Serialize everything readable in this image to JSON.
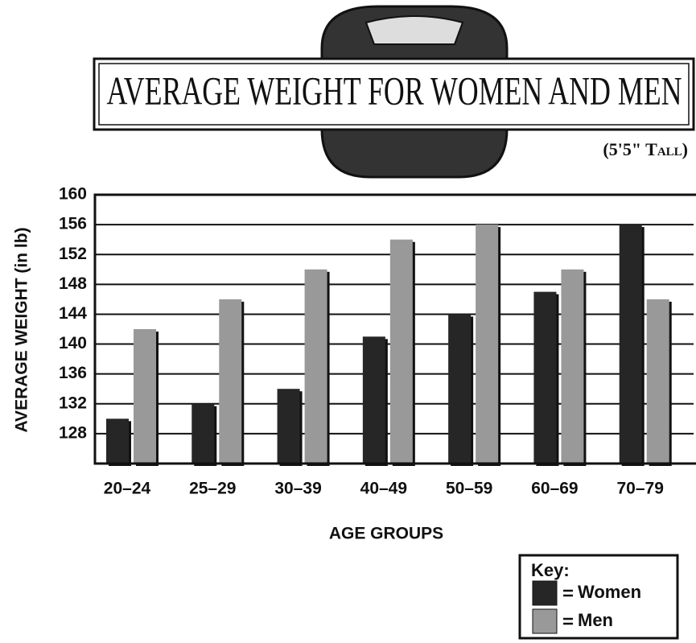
{
  "chart_data": {
    "type": "bar",
    "title": "AVERAGE WEIGHT FOR WOMEN AND MEN",
    "subtitle": "(5'5\" Tall)",
    "y_label": "AVERAGE WEIGHT (in lb)",
    "x_label": "AGE GROUPS",
    "legend_title": "Key:",
    "categories": [
      "20–24",
      "25–29",
      "30–39",
      "40–49",
      "50–59",
      "60–69",
      "70–79"
    ],
    "series": [
      {
        "name": "Women",
        "color": "#262626",
        "values": [
          130,
          132,
          134,
          141,
          144,
          147,
          156
        ]
      },
      {
        "name": "Men",
        "color": "#999999",
        "values": [
          142,
          146,
          150,
          154,
          156,
          150,
          146
        ]
      }
    ],
    "ylim": [
      124,
      160
    ],
    "yticks": [
      128,
      132,
      136,
      140,
      144,
      148,
      152,
      156,
      160
    ],
    "grid": true
  }
}
